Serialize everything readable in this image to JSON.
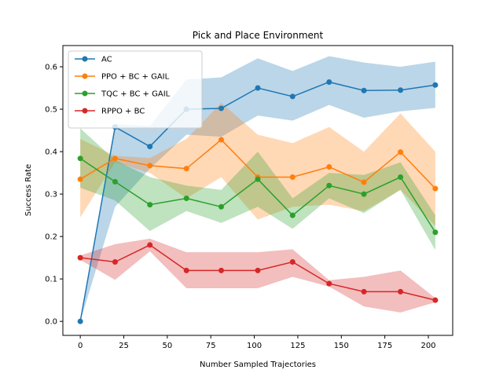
{
  "chart_data": {
    "type": "line",
    "title": "Pick and Place Environment",
    "xlabel": "Number Sampled Trajectories",
    "ylabel": "Success Rate",
    "xlim": [
      -10,
      214
    ],
    "ylim": [
      -0.033,
      0.65
    ],
    "xticks": [
      0,
      25,
      50,
      75,
      100,
      125,
      150,
      175,
      200
    ],
    "yticks": [
      0.0,
      0.1,
      0.2,
      0.3,
      0.4,
      0.5,
      0.6
    ],
    "ytick_labels": [
      "0.0",
      "0.1",
      "0.2",
      "0.3",
      "0.4",
      "0.5",
      "0.6"
    ],
    "grid": false,
    "legend_position": "top-left",
    "x": [
      0,
      20,
      40,
      61,
      81,
      102,
      122,
      143,
      163,
      184,
      204
    ],
    "series": [
      {
        "name": "AC",
        "color": "#1f77b4",
        "values": [
          0.0,
          0.458,
          0.412,
          0.5,
          0.502,
          0.55,
          0.53,
          0.564,
          0.544,
          0.545,
          0.557
        ],
        "lower": [
          0.0,
          0.27,
          0.36,
          0.44,
          0.435,
          0.485,
          0.473,
          0.51,
          0.48,
          0.495,
          0.503
        ],
        "upper": [
          0.0,
          0.465,
          0.46,
          0.57,
          0.575,
          0.62,
          0.59,
          0.625,
          0.61,
          0.6,
          0.612
        ]
      },
      {
        "name": "PPO + BC + GAIL",
        "color": "#ff7f0e",
        "values": [
          0.335,
          0.384,
          0.367,
          0.36,
          0.428,
          0.34,
          0.34,
          0.364,
          0.328,
          0.399,
          0.313
        ],
        "lower": [
          0.245,
          0.375,
          0.35,
          0.29,
          0.34,
          0.24,
          0.27,
          0.275,
          0.26,
          0.31,
          0.225
        ],
        "upper": [
          0.43,
          0.39,
          0.385,
          0.43,
          0.515,
          0.44,
          0.42,
          0.458,
          0.4,
          0.49,
          0.4
        ]
      },
      {
        "name": "TQC + BC + GAIL",
        "color": "#2ca02c",
        "values": [
          0.384,
          0.329,
          0.275,
          0.29,
          0.27,
          0.335,
          0.25,
          0.32,
          0.3,
          0.34,
          0.21
        ],
        "lower": [
          0.315,
          0.285,
          0.213,
          0.26,
          0.232,
          0.27,
          0.218,
          0.29,
          0.255,
          0.31,
          0.168
        ],
        "upper": [
          0.455,
          0.38,
          0.34,
          0.32,
          0.31,
          0.4,
          0.29,
          0.35,
          0.345,
          0.375,
          0.25
        ]
      },
      {
        "name": "RPPO + BC",
        "color": "#d62728",
        "values": [
          0.15,
          0.14,
          0.18,
          0.12,
          0.12,
          0.12,
          0.14,
          0.089,
          0.07,
          0.07,
          0.05
        ],
        "lower": [
          0.145,
          0.098,
          0.165,
          0.078,
          0.078,
          0.078,
          0.105,
          0.082,
          0.035,
          0.021,
          0.045
        ],
        "upper": [
          0.155,
          0.182,
          0.195,
          0.163,
          0.163,
          0.163,
          0.17,
          0.097,
          0.105,
          0.12,
          0.055
        ]
      }
    ]
  }
}
